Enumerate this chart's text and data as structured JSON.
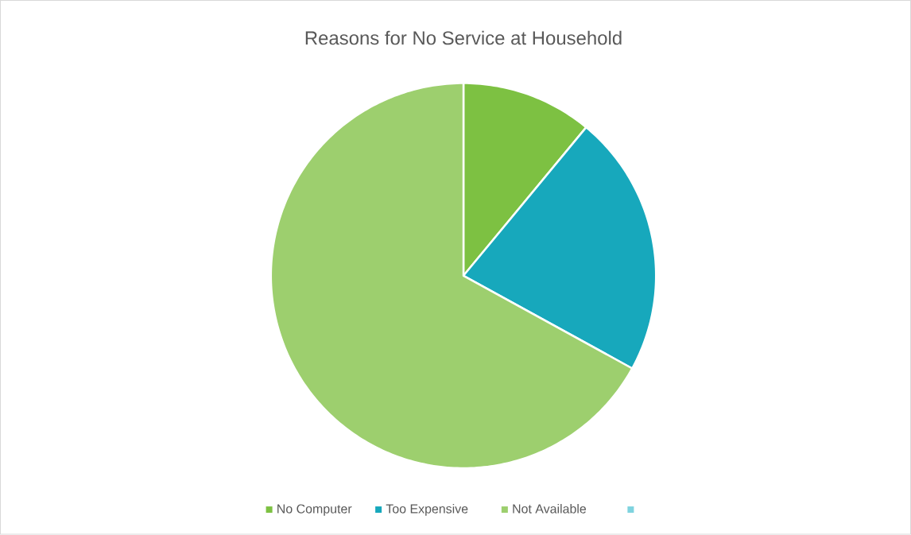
{
  "chart_data": {
    "type": "pie",
    "title": "Reasons for No Service at Household",
    "categories": [
      "No Computer",
      "Too Expensive",
      "Not Available",
      null
    ],
    "values": [
      11,
      22,
      67,
      0
    ],
    "colors": [
      "#7dc142",
      "#17a8bc",
      "#9dcf6e",
      "#7fd3df"
    ],
    "legend": "bottom"
  }
}
